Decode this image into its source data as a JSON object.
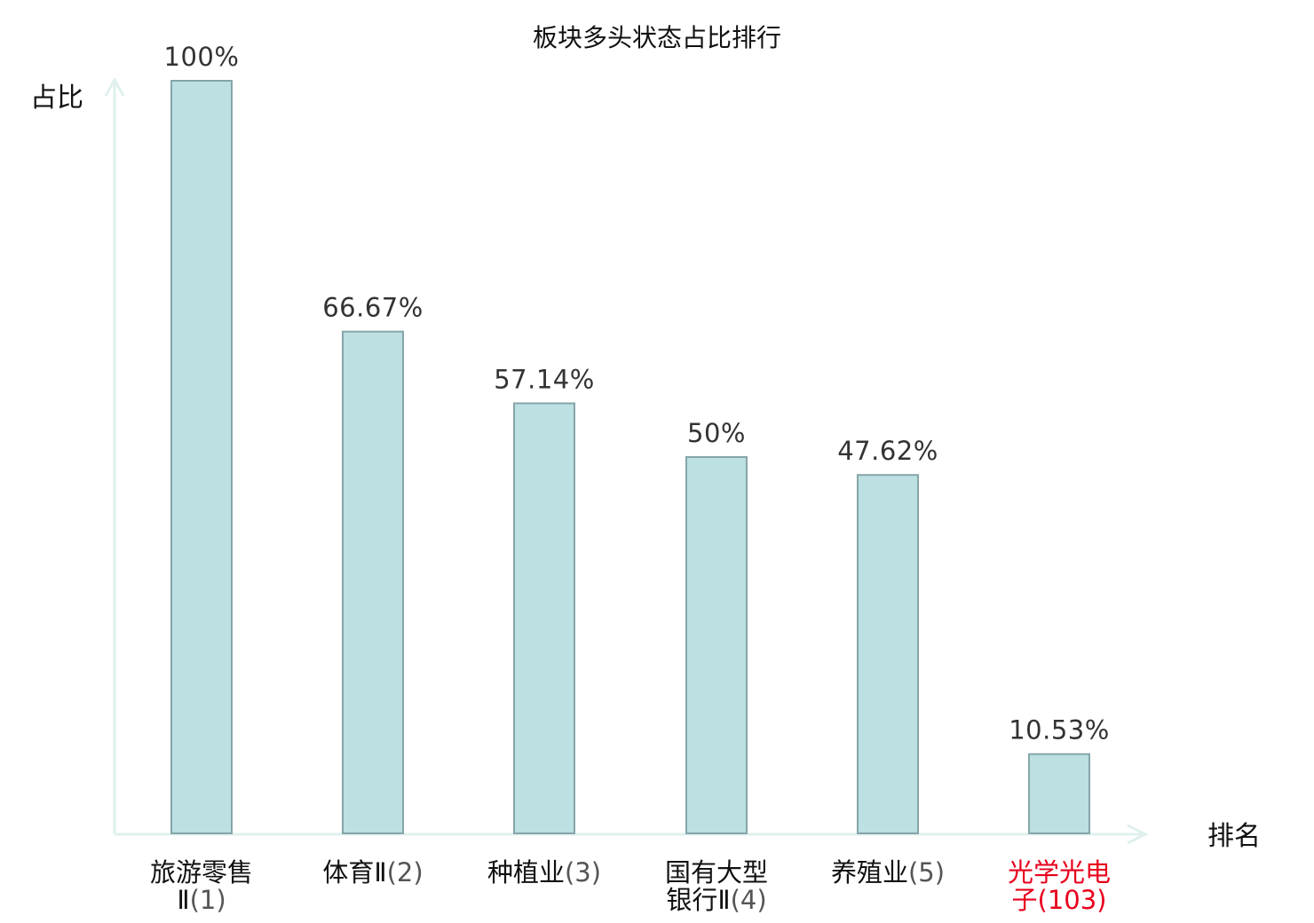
{
  "chart_data": {
    "type": "bar",
    "title": "板块多头状态占比排行",
    "ylabel": "占比",
    "xlabel": "排名",
    "ylim": [
      0,
      100
    ],
    "grid": false,
    "legend": "none",
    "categories": [
      {
        "name_lines": [
          "旅游零售",
          "Ⅱ"
        ],
        "rank": "(1)",
        "highlight": false
      },
      {
        "name_lines": [
          "体育Ⅱ"
        ],
        "rank": "(2)",
        "highlight": false
      },
      {
        "name_lines": [
          "种植业"
        ],
        "rank": "(3)",
        "highlight": false
      },
      {
        "name_lines": [
          "国有大型",
          "银行Ⅱ"
        ],
        "rank": "(4)",
        "highlight": false
      },
      {
        "name_lines": [
          "养殖业"
        ],
        "rank": "(5)",
        "highlight": false
      },
      {
        "name_lines": [
          "光学光电",
          "子"
        ],
        "rank": "(103)",
        "highlight": true
      }
    ],
    "values": [
      100,
      66.67,
      57.14,
      50,
      47.62,
      10.53
    ],
    "value_labels": [
      "100%",
      "66.67%",
      "57.14%",
      "50%",
      "47.62%",
      "10.53%"
    ],
    "colors": {
      "bar_fill": "#bde0e2",
      "bar_stroke": "#86a6a9",
      "axis": "#dff0ee",
      "label": "#111111",
      "rank": "#555555",
      "highlight": "#e8001c"
    }
  }
}
